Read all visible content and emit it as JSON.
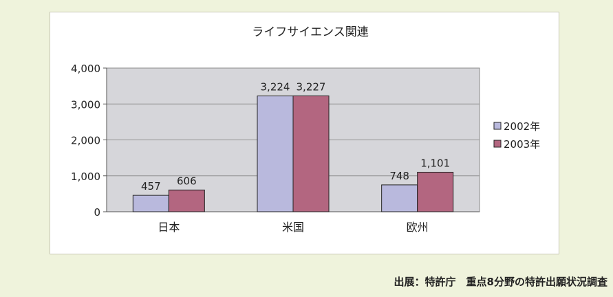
{
  "source": "出展：特許庁　重点8分野の特許出願状況調査",
  "chart_data": {
    "type": "bar",
    "title": "ライフサイエンス関連",
    "categories": [
      "日本",
      "米国",
      "欧州"
    ],
    "series": [
      {
        "name": "2002年",
        "values": [
          457,
          3224,
          748
        ],
        "labels": [
          "457",
          "3,224",
          "748"
        ],
        "color": "#b9b9dd"
      },
      {
        "name": "2003年",
        "values": [
          606,
          3227,
          1101
        ],
        "labels": [
          "606",
          "3,227",
          "1,101"
        ],
        "color": "#b36680"
      }
    ],
    "ylim": [
      0,
      4000
    ],
    "yticks": [
      0,
      1000,
      2000,
      3000,
      4000
    ],
    "ytick_labels": [
      "0",
      "1,000",
      "2,000",
      "3,000",
      "4,000"
    ],
    "grid": true,
    "legend": "right",
    "plot_background": "#d6d6da"
  }
}
